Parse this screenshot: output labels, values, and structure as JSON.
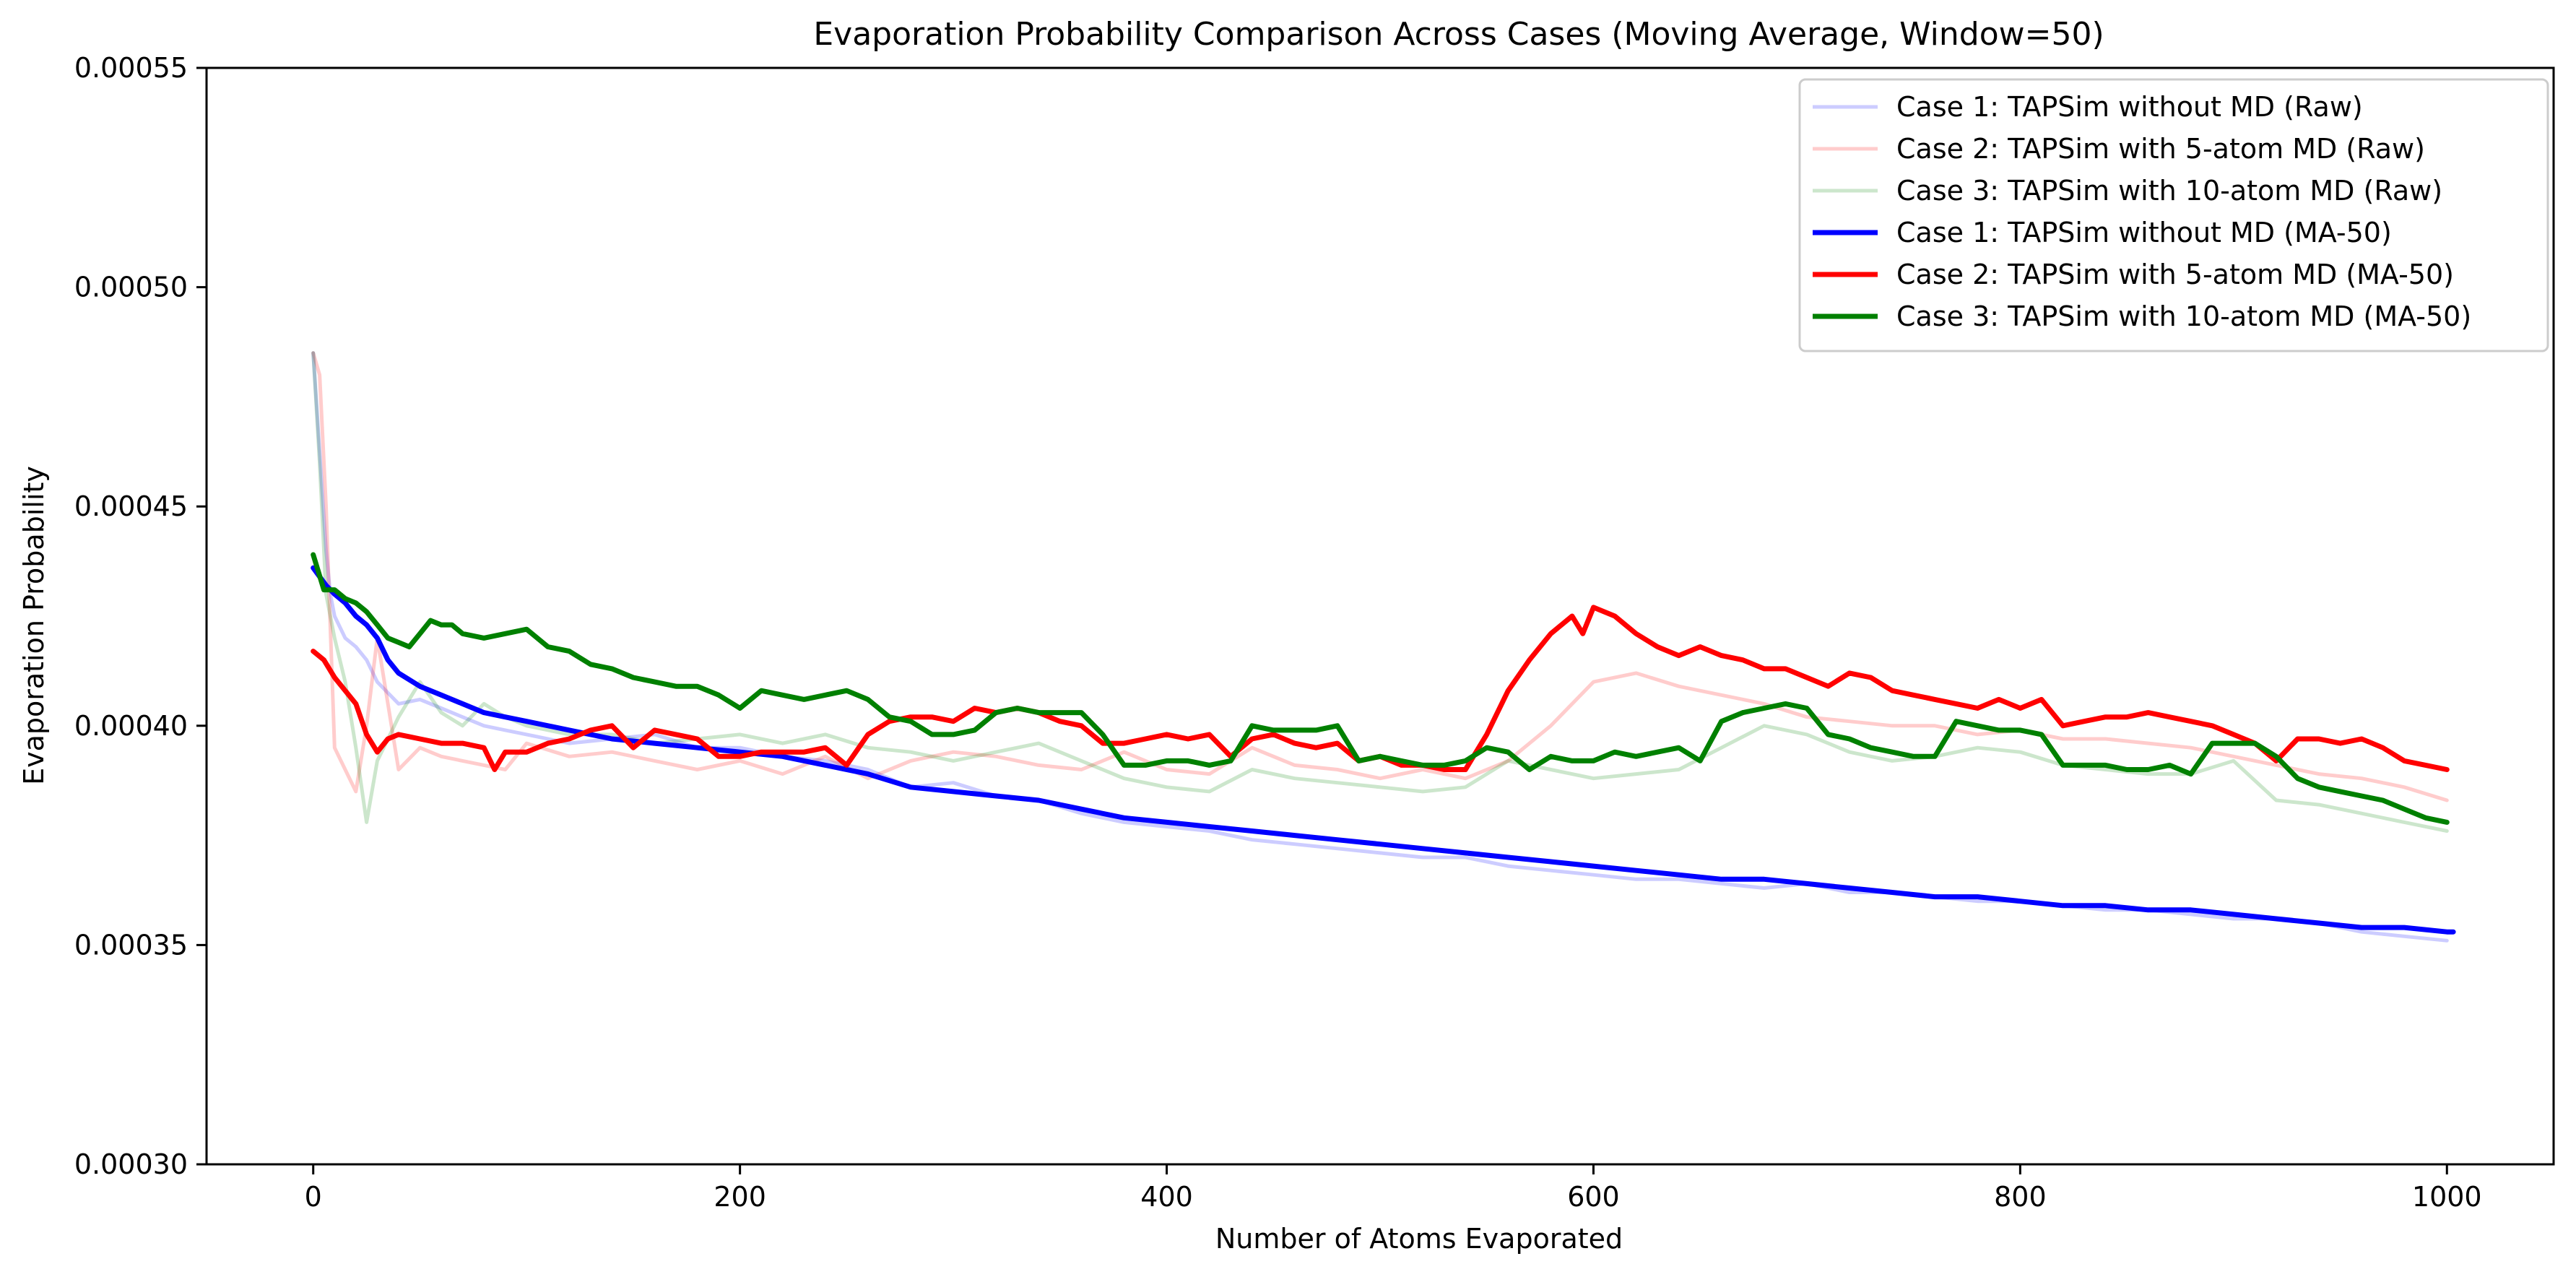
{
  "chart_data": {
    "type": "line",
    "title": "Evaporation Probability Comparison Across Cases (Moving Average, Window=50)",
    "xlabel": "Number of Atoms Evaporated",
    "ylabel": "Evaporation Probability",
    "xlim": [
      -50,
      1050
    ],
    "ylim": [
      0.0003,
      0.00055
    ],
    "xticks": [
      0,
      200,
      400,
      600,
      800,
      1000
    ],
    "xtick_labels": [
      "0",
      "200",
      "400",
      "600",
      "800",
      "1000"
    ],
    "yticks": [
      0.0003,
      0.00035,
      0.0004,
      0.00045,
      0.0005,
      0.00055
    ],
    "ytick_labels": [
      "0.00030",
      "0.00035",
      "0.00040",
      "0.00045",
      "0.00050",
      "0.00055"
    ],
    "grid": false,
    "legend_position": "upper right",
    "series": [
      {
        "name": "Case 1: TAPSim without MD (Raw)",
        "color": "#0000ff",
        "alpha": 0.2,
        "style": "raw",
        "x": [
          0,
          2,
          4,
          6,
          8,
          10,
          15,
          20,
          25,
          30,
          40,
          50,
          60,
          70,
          80,
          90,
          100,
          120,
          140,
          160,
          180,
          200,
          220,
          240,
          260,
          280,
          300,
          320,
          340,
          360,
          380,
          400,
          420,
          440,
          460,
          480,
          500,
          520,
          540,
          560,
          580,
          600,
          620,
          640,
          660,
          680,
          700,
          720,
          740,
          760,
          780,
          800,
          820,
          840,
          860,
          880,
          900,
          920,
          940,
          960,
          980,
          1000
        ],
        "y": [
          0.000485,
          0.00047,
          0.000455,
          0.00044,
          0.00043,
          0.000425,
          0.00042,
          0.000418,
          0.000415,
          0.00041,
          0.000405,
          0.000406,
          0.000404,
          0.000402,
          0.0004,
          0.000399,
          0.000398,
          0.000396,
          0.000397,
          0.000398,
          0.000395,
          0.000395,
          0.000393,
          0.000392,
          0.00039,
          0.000386,
          0.000387,
          0.000384,
          0.000383,
          0.00038,
          0.000378,
          0.000377,
          0.000376,
          0.000374,
          0.000373,
          0.000372,
          0.000371,
          0.00037,
          0.00037,
          0.000368,
          0.000367,
          0.000366,
          0.000365,
          0.000365,
          0.000364,
          0.000363,
          0.000364,
          0.000362,
          0.000362,
          0.000361,
          0.00036,
          0.00036,
          0.000359,
          0.000358,
          0.000358,
          0.000357,
          0.000356,
          0.000356,
          0.000355,
          0.000353,
          0.000352,
          0.000351
        ]
      },
      {
        "name": "Case 2: TAPSim with 5-atom MD (Raw)",
        "color": "#ff0000",
        "alpha": 0.2,
        "style": "raw",
        "x": [
          0,
          3,
          6,
          10,
          15,
          20,
          25,
          30,
          40,
          50,
          60,
          70,
          80,
          90,
          100,
          120,
          140,
          160,
          180,
          200,
          220,
          240,
          260,
          280,
          300,
          320,
          340,
          360,
          380,
          400,
          420,
          440,
          460,
          480,
          500,
          520,
          540,
          560,
          580,
          600,
          620,
          640,
          660,
          680,
          700,
          720,
          740,
          760,
          780,
          800,
          820,
          840,
          860,
          880,
          900,
          920,
          940,
          960,
          980,
          1000
        ],
        "y": [
          0.000485,
          0.00048,
          0.00045,
          0.000395,
          0.00039,
          0.000385,
          0.0004,
          0.00042,
          0.00039,
          0.000395,
          0.000393,
          0.000392,
          0.000391,
          0.00039,
          0.000396,
          0.000393,
          0.000394,
          0.000392,
          0.00039,
          0.000392,
          0.000389,
          0.000393,
          0.000388,
          0.000392,
          0.000394,
          0.000393,
          0.000391,
          0.00039,
          0.000394,
          0.00039,
          0.000389,
          0.000395,
          0.000391,
          0.00039,
          0.000388,
          0.00039,
          0.000388,
          0.000392,
          0.0004,
          0.00041,
          0.000412,
          0.000409,
          0.000407,
          0.000405,
          0.000402,
          0.000401,
          0.0004,
          0.0004,
          0.000398,
          0.000399,
          0.000397,
          0.000397,
          0.000396,
          0.000395,
          0.000393,
          0.000391,
          0.000389,
          0.000388,
          0.000386,
          0.000383
        ]
      },
      {
        "name": "Case 3: TAPSim with 10-atom MD (Raw)",
        "color": "#008000",
        "alpha": 0.2,
        "style": "raw",
        "x": [
          0,
          3,
          6,
          10,
          15,
          20,
          25,
          30,
          40,
          50,
          60,
          70,
          80,
          90,
          100,
          120,
          140,
          160,
          180,
          200,
          220,
          240,
          260,
          280,
          300,
          320,
          340,
          360,
          380,
          400,
          420,
          440,
          460,
          480,
          500,
          520,
          540,
          560,
          580,
          600,
          620,
          640,
          660,
          680,
          700,
          720,
          740,
          760,
          780,
          800,
          820,
          840,
          860,
          880,
          900,
          920,
          940,
          960,
          980,
          1000
        ],
        "y": [
          0.000485,
          0.00046,
          0.00043,
          0.00042,
          0.00041,
          0.000395,
          0.000378,
          0.000392,
          0.000402,
          0.00041,
          0.000403,
          0.0004,
          0.000405,
          0.000402,
          0.0004,
          0.000398,
          0.000398,
          0.000396,
          0.000397,
          0.000398,
          0.000396,
          0.000398,
          0.000395,
          0.000394,
          0.000392,
          0.000394,
          0.000396,
          0.000392,
          0.000388,
          0.000386,
          0.000385,
          0.00039,
          0.000388,
          0.000387,
          0.000386,
          0.000385,
          0.000386,
          0.000392,
          0.00039,
          0.000388,
          0.000389,
          0.00039,
          0.000395,
          0.0004,
          0.000398,
          0.000394,
          0.000392,
          0.000393,
          0.000395,
          0.000394,
          0.000391,
          0.00039,
          0.000389,
          0.000389,
          0.000392,
          0.000383,
          0.000382,
          0.00038,
          0.000378,
          0.000376
        ]
      },
      {
        "name": "Case 1: TAPSim without MD (MA-50)",
        "color": "#0000ff",
        "alpha": 1,
        "style": "ma",
        "x": [
          0,
          3,
          6,
          10,
          15,
          20,
          25,
          30,
          35,
          40,
          50,
          60,
          70,
          80,
          90,
          100,
          120,
          140,
          160,
          180,
          200,
          220,
          240,
          260,
          280,
          300,
          320,
          340,
          360,
          380,
          400,
          420,
          440,
          460,
          480,
          500,
          520,
          540,
          560,
          580,
          600,
          620,
          640,
          660,
          680,
          700,
          720,
          740,
          760,
          780,
          800,
          820,
          840,
          860,
          880,
          900,
          920,
          940,
          960,
          980,
          1000,
          1003
        ],
        "y": [
          0.000436,
          0.000434,
          0.000432,
          0.00043,
          0.000428,
          0.000425,
          0.000423,
          0.00042,
          0.000415,
          0.000412,
          0.000409,
          0.000407,
          0.000405,
          0.000403,
          0.000402,
          0.000401,
          0.000399,
          0.000397,
          0.000396,
          0.000395,
          0.000394,
          0.000393,
          0.000391,
          0.000389,
          0.000386,
          0.000385,
          0.000384,
          0.000383,
          0.000381,
          0.000379,
          0.000378,
          0.000377,
          0.000376,
          0.000375,
          0.000374,
          0.000373,
          0.000372,
          0.000371,
          0.00037,
          0.000369,
          0.000368,
          0.000367,
          0.000366,
          0.000365,
          0.000365,
          0.000364,
          0.000363,
          0.000362,
          0.000361,
          0.000361,
          0.00036,
          0.000359,
          0.000359,
          0.000358,
          0.000358,
          0.000357,
          0.000356,
          0.000355,
          0.000354,
          0.000354,
          0.000353,
          0.000353
        ]
      },
      {
        "name": "Case 2: TAPSim with 5-atom MD (MA-50)",
        "color": "#ff0000",
        "alpha": 1,
        "style": "ma",
        "x": [
          0,
          5,
          10,
          15,
          20,
          25,
          30,
          35,
          40,
          50,
          60,
          70,
          80,
          85,
          90,
          100,
          110,
          120,
          130,
          140,
          150,
          160,
          170,
          180,
          190,
          200,
          210,
          220,
          230,
          240,
          250,
          260,
          270,
          280,
          290,
          300,
          310,
          320,
          330,
          340,
          350,
          360,
          370,
          380,
          390,
          400,
          410,
          420,
          430,
          440,
          450,
          460,
          470,
          480,
          490,
          500,
          510,
          520,
          530,
          540,
          550,
          560,
          570,
          580,
          590,
          595,
          600,
          610,
          620,
          630,
          640,
          650,
          660,
          670,
          680,
          690,
          700,
          710,
          720,
          730,
          740,
          750,
          760,
          770,
          780,
          790,
          800,
          810,
          820,
          830,
          840,
          850,
          860,
          870,
          880,
          890,
          900,
          910,
          920,
          930,
          940,
          950,
          960,
          970,
          980,
          990,
          1000
        ],
        "y": [
          0.000417,
          0.000415,
          0.000411,
          0.000408,
          0.000405,
          0.000398,
          0.000394,
          0.000397,
          0.000398,
          0.000397,
          0.000396,
          0.000396,
          0.000395,
          0.00039,
          0.000394,
          0.000394,
          0.000396,
          0.000397,
          0.000399,
          0.0004,
          0.000395,
          0.000399,
          0.000398,
          0.000397,
          0.000393,
          0.000393,
          0.000394,
          0.000394,
          0.000394,
          0.000395,
          0.000391,
          0.000398,
          0.000401,
          0.000402,
          0.000402,
          0.000401,
          0.000404,
          0.000403,
          0.000404,
          0.000403,
          0.000401,
          0.0004,
          0.000396,
          0.000396,
          0.000397,
          0.000398,
          0.000397,
          0.000398,
          0.000393,
          0.000397,
          0.000398,
          0.000396,
          0.000395,
          0.000396,
          0.000392,
          0.000393,
          0.000391,
          0.000391,
          0.00039,
          0.00039,
          0.000398,
          0.000408,
          0.000415,
          0.000421,
          0.000425,
          0.000421,
          0.000427,
          0.000425,
          0.000421,
          0.000418,
          0.000416,
          0.000418,
          0.000416,
          0.000415,
          0.000413,
          0.000413,
          0.000411,
          0.000409,
          0.000412,
          0.000411,
          0.000408,
          0.000407,
          0.000406,
          0.000405,
          0.000404,
          0.000406,
          0.000404,
          0.000406,
          0.0004,
          0.000401,
          0.000402,
          0.000402,
          0.000403,
          0.000402,
          0.000401,
          0.0004,
          0.000398,
          0.000396,
          0.000392,
          0.000397,
          0.000397,
          0.000396,
          0.000397,
          0.000395,
          0.000392,
          0.000391,
          0.00039
        ]
      },
      {
        "name": "Case 3: TAPSim with 10-atom MD (MA-50)",
        "color": "#008000",
        "alpha": 1,
        "style": "ma",
        "x": [
          0,
          5,
          10,
          15,
          20,
          25,
          30,
          35,
          40,
          45,
          50,
          55,
          60,
          65,
          70,
          80,
          90,
          100,
          110,
          120,
          130,
          140,
          150,
          160,
          170,
          180,
          190,
          200,
          210,
          220,
          230,
          240,
          250,
          260,
          270,
          280,
          290,
          300,
          310,
          320,
          330,
          340,
          350,
          360,
          370,
          380,
          390,
          400,
          410,
          420,
          430,
          440,
          450,
          460,
          470,
          480,
          490,
          500,
          510,
          520,
          530,
          540,
          550,
          560,
          570,
          580,
          590,
          600,
          610,
          620,
          630,
          640,
          650,
          660,
          670,
          680,
          690,
          700,
          710,
          720,
          730,
          740,
          750,
          760,
          770,
          780,
          790,
          800,
          810,
          820,
          830,
          840,
          850,
          860,
          870,
          880,
          890,
          900,
          910,
          920,
          930,
          940,
          950,
          960,
          970,
          980,
          990,
          1000
        ],
        "y": [
          0.000439,
          0.000431,
          0.000431,
          0.000429,
          0.000428,
          0.000426,
          0.000423,
          0.00042,
          0.000419,
          0.000418,
          0.000421,
          0.000424,
          0.000423,
          0.000423,
          0.000421,
          0.00042,
          0.000421,
          0.000422,
          0.000418,
          0.000417,
          0.000414,
          0.000413,
          0.000411,
          0.00041,
          0.000409,
          0.000409,
          0.000407,
          0.000404,
          0.000408,
          0.000407,
          0.000406,
          0.000407,
          0.000408,
          0.000406,
          0.000402,
          0.000401,
          0.000398,
          0.000398,
          0.000399,
          0.000403,
          0.000404,
          0.000403,
          0.000403,
          0.000403,
          0.000398,
          0.000391,
          0.000391,
          0.000392,
          0.000392,
          0.000391,
          0.000392,
          0.0004,
          0.000399,
          0.000399,
          0.000399,
          0.0004,
          0.000392,
          0.000393,
          0.000392,
          0.000391,
          0.000391,
          0.000392,
          0.000395,
          0.000394,
          0.00039,
          0.000393,
          0.000392,
          0.000392,
          0.000394,
          0.000393,
          0.000394,
          0.000395,
          0.000392,
          0.000401,
          0.000403,
          0.000404,
          0.000405,
          0.000404,
          0.000398,
          0.000397,
          0.000395,
          0.000394,
          0.000393,
          0.000393,
          0.000401,
          0.0004,
          0.000399,
          0.000399,
          0.000398,
          0.000391,
          0.000391,
          0.000391,
          0.00039,
          0.00039,
          0.000391,
          0.000389,
          0.000396,
          0.000396,
          0.000396,
          0.000393,
          0.000388,
          0.000386,
          0.000385,
          0.000384,
          0.000383,
          0.000381,
          0.000379,
          0.000378
        ]
      }
    ]
  }
}
